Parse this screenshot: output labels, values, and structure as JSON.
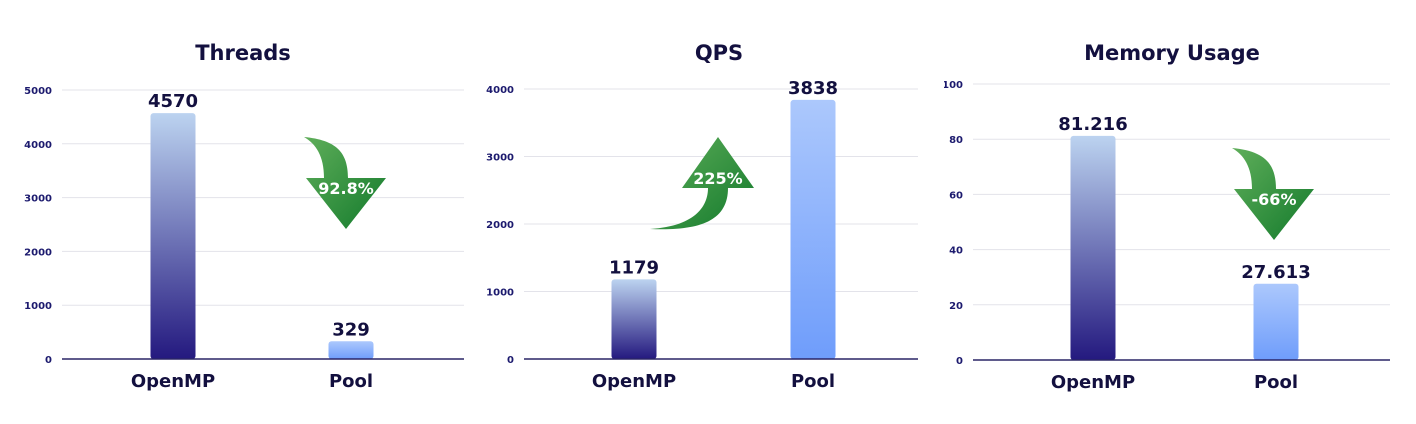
{
  "colors": {
    "openmp_top": "#bcd3f0",
    "openmp_bottom": "#24197f",
    "pool_top": "#acc8fc",
    "pool_bottom": "#6f9dfb",
    "arrow_light": "#5fae5a",
    "arrow_dark": "#137a2c",
    "grid": "#e3e3ea",
    "axis": "#2a2567"
  },
  "chart_data": [
    {
      "type": "bar",
      "title": "Threads",
      "categories": [
        "OpenMP",
        "Pool"
      ],
      "values": [
        4570,
        329
      ],
      "value_labels": [
        "4570",
        "329"
      ],
      "ylim": [
        0,
        5000
      ],
      "yticks": [
        0,
        1000,
        2000,
        3000,
        4000,
        5000
      ],
      "grid": true,
      "annotation": {
        "text": "92.8%",
        "direction": "down",
        "icon": "curved-arrow-down-icon"
      }
    },
    {
      "type": "bar",
      "title": "QPS",
      "categories": [
        "OpenMP",
        "Pool"
      ],
      "values": [
        1179,
        3838
      ],
      "value_labels": [
        "1179",
        "3838"
      ],
      "ylim": [
        0,
        4000
      ],
      "yticks": [
        0,
        1000,
        2000,
        3000,
        4000
      ],
      "grid": true,
      "annotation": {
        "text": "225%",
        "direction": "up",
        "icon": "curved-arrow-up-icon"
      }
    },
    {
      "type": "bar",
      "title": "Memory Usage",
      "categories": [
        "OpenMP",
        "Pool"
      ],
      "values": [
        81.216,
        27.613
      ],
      "value_labels": [
        "81.216",
        "27.613"
      ],
      "ylim": [
        0,
        100
      ],
      "yticks": [
        0,
        20,
        40,
        60,
        80,
        100
      ],
      "grid": true,
      "annotation": {
        "text": "-66%",
        "direction": "down",
        "icon": "curved-arrow-down-icon"
      }
    }
  ]
}
